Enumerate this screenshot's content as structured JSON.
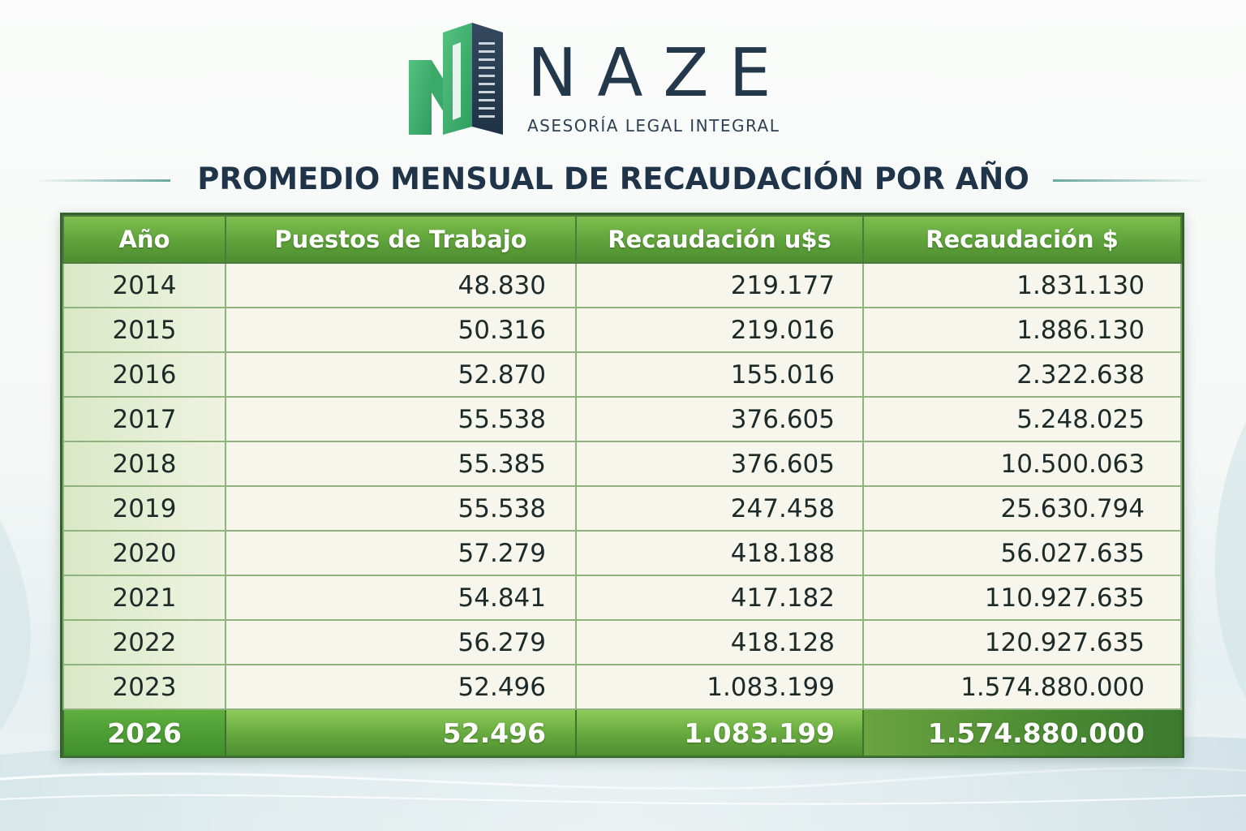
{
  "brand": {
    "name": "NAZE",
    "tagline": "ASESORÍA LEGAL INTEGRAL",
    "colors": {
      "primary_green": "#3fa86a",
      "dark_navy": "#24384c",
      "table_green": "#5ea23a"
    }
  },
  "page": {
    "title": "PROMEDIO MENSUAL DE RECAUDACIÓN POR AÑO"
  },
  "table": {
    "headers": [
      "Año",
      "Puestos de Trabajo",
      "Recaudación u$s",
      "Recaudación $"
    ],
    "rows": [
      [
        "2014",
        "48.830",
        "219.177",
        "1.831.130"
      ],
      [
        "2015",
        "50.316",
        "219.016",
        "1.886.130"
      ],
      [
        "2016",
        "52.870",
        "155.016",
        "2.322.638"
      ],
      [
        "2017",
        "55.538",
        "376.605",
        "5.248.025"
      ],
      [
        "2018",
        "55.385",
        "376.605",
        "10.500.063"
      ],
      [
        "2019",
        "55.538",
        "247.458",
        "25.630.794"
      ],
      [
        "2020",
        "57.279",
        "418.188",
        "56.027.635"
      ],
      [
        "2021",
        "54.841",
        "417.182",
        "110.927.635"
      ],
      [
        "2022",
        "56.279",
        "418.128",
        "120.927.635"
      ],
      [
        "2023",
        "52.496",
        "1.083.199",
        "1.574.880.000"
      ]
    ],
    "total_row": [
      "2026",
      "52.496",
      "1.083.199",
      "1.574.880.000"
    ]
  }
}
